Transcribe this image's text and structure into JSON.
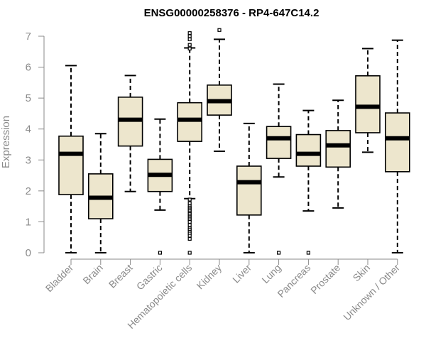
{
  "chart_data": {
    "type": "boxplot",
    "title": "ENSG00000258376 - RP4-647C14.2",
    "xlabel": "",
    "ylabel": "Expression",
    "ylim": [
      0,
      7
    ],
    "yticks": [
      0,
      1,
      2,
      3,
      4,
      5,
      6,
      7
    ],
    "box_fill": "#ede6cd",
    "box_stroke": "#000000",
    "categories": [
      "Bladder",
      "Brain",
      "Breast",
      "Gastric",
      "Hematopoietic cells",
      "Kidney",
      "Liver",
      "Lung",
      "Pancreas",
      "Prostate",
      "Skin",
      "Unknown / Other"
    ],
    "boxes": [
      {
        "label": "Bladder",
        "whisker_low": 0.0,
        "q1": 1.88,
        "median": 3.2,
        "q3": 3.77,
        "whisker_high": 6.05,
        "outliers": []
      },
      {
        "label": "Brain",
        "whisker_low": 0.0,
        "q1": 1.1,
        "median": 1.78,
        "q3": 2.55,
        "whisker_high": 3.85,
        "outliers": []
      },
      {
        "label": "Breast",
        "whisker_low": 1.98,
        "q1": 3.45,
        "median": 4.3,
        "q3": 5.03,
        "whisker_high": 5.73,
        "outliers": []
      },
      {
        "label": "Gastric",
        "whisker_low": 1.38,
        "q1": 1.98,
        "median": 2.52,
        "q3": 3.02,
        "whisker_high": 4.32,
        "outliers": [
          0.0
        ]
      },
      {
        "label": "Hematopoietic cells",
        "whisker_low": 1.75,
        "q1": 3.6,
        "median": 4.3,
        "q3": 4.85,
        "whisker_high": 6.62,
        "outliers": [
          7.1,
          7.0,
          6.9,
          6.72,
          6.6,
          1.72,
          1.6,
          1.5,
          1.45,
          1.4,
          1.35,
          1.3,
          1.25,
          1.2,
          1.15,
          1.1,
          1.05,
          1.0,
          0.9,
          0.8,
          0.75,
          0.68,
          0.62,
          0.55,
          0.45,
          0.0
        ]
      },
      {
        "label": "Kidney",
        "whisker_low": 3.28,
        "q1": 4.45,
        "median": 4.9,
        "q3": 5.42,
        "whisker_high": 6.9,
        "outliers": [
          7.2
        ]
      },
      {
        "label": "Liver",
        "whisker_low": 0.0,
        "q1": 1.22,
        "median": 2.28,
        "q3": 2.8,
        "whisker_high": 4.18,
        "outliers": []
      },
      {
        "label": "Lung",
        "whisker_low": 2.45,
        "q1": 3.05,
        "median": 3.7,
        "q3": 4.08,
        "whisker_high": 5.45,
        "outliers": [
          0.0
        ]
      },
      {
        "label": "Pancreas",
        "whisker_low": 1.35,
        "q1": 2.8,
        "median": 3.2,
        "q3": 3.82,
        "whisker_high": 4.6,
        "outliers": [
          0.0
        ]
      },
      {
        "label": "Prostate",
        "whisker_low": 1.45,
        "q1": 2.77,
        "median": 3.47,
        "q3": 3.95,
        "whisker_high": 4.93,
        "outliers": []
      },
      {
        "label": "Skin",
        "whisker_low": 3.25,
        "q1": 3.88,
        "median": 4.72,
        "q3": 5.72,
        "whisker_high": 6.6,
        "outliers": []
      },
      {
        "label": "Unknown / Other",
        "whisker_low": 0.0,
        "q1": 2.62,
        "median": 3.7,
        "q3": 4.52,
        "whisker_high": 6.87,
        "outliers": []
      }
    ]
  }
}
